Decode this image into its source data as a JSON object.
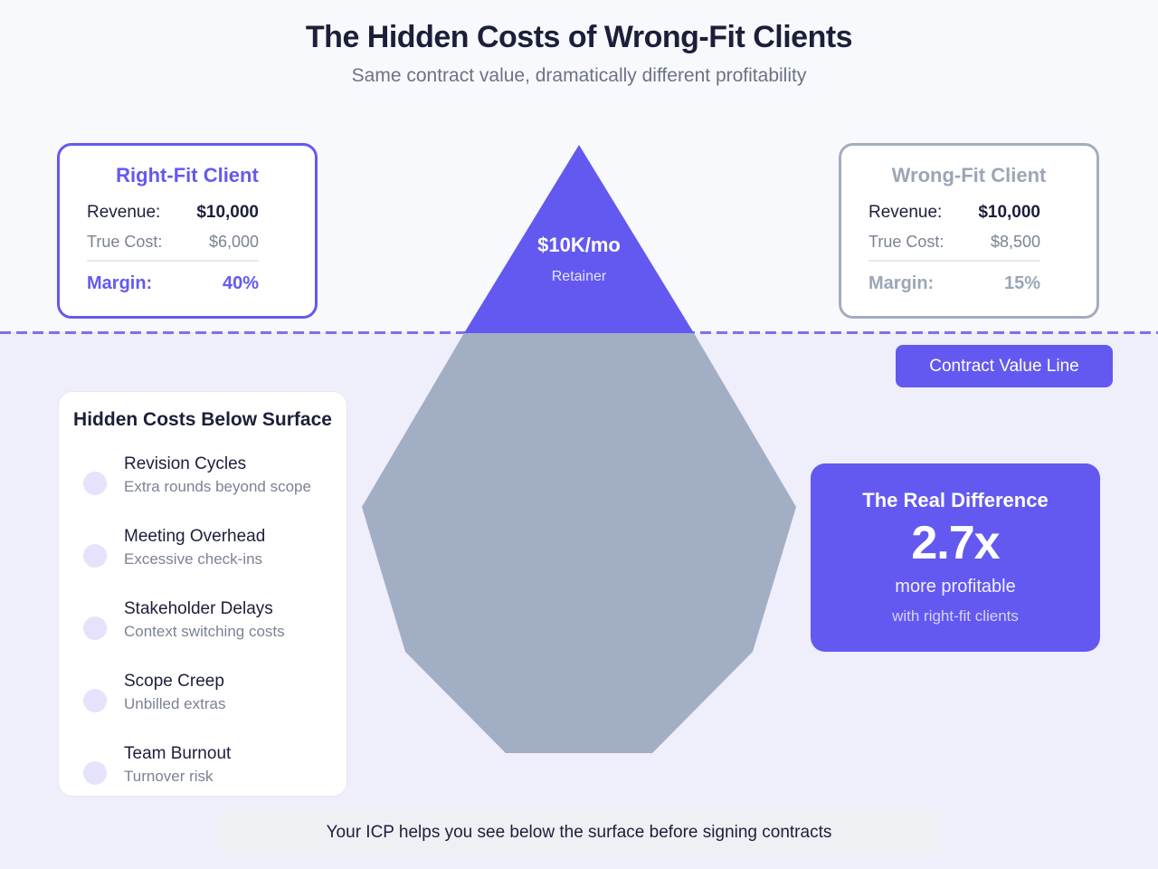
{
  "header": {
    "title": "The Hidden Costs of Wrong-Fit Clients",
    "subtitle": "Same contract value, dramatically different profitability"
  },
  "iceberg": {
    "tip_value": "$10K/mo",
    "tip_label": "Retainer"
  },
  "right_fit": {
    "title": "Right-Fit Client",
    "revenue_label": "Revenue:",
    "revenue_value": "$10,000",
    "cost_label": "True Cost:",
    "cost_value": "$6,000",
    "margin_label": "Margin:",
    "margin_value": "40%"
  },
  "wrong_fit": {
    "title": "Wrong-Fit Client",
    "revenue_label": "Revenue:",
    "revenue_value": "$10,000",
    "cost_label": "True Cost:",
    "cost_value": "$8,500",
    "margin_label": "Margin:",
    "margin_value": "15%"
  },
  "contract_line": {
    "label": "Contract Value Line"
  },
  "hidden_costs": {
    "title": "Hidden Costs Below Surface",
    "items": [
      {
        "name": "Revision Cycles",
        "desc": "Extra rounds beyond scope"
      },
      {
        "name": "Meeting Overhead",
        "desc": "Excessive check-ins"
      },
      {
        "name": "Stakeholder Delays",
        "desc": "Context switching costs"
      },
      {
        "name": "Scope Creep",
        "desc": "Unbilled extras"
      },
      {
        "name": "Team Burnout",
        "desc": "Turnover risk"
      }
    ]
  },
  "difference": {
    "title": "The Real Difference",
    "value": "2.7x",
    "subtitle": "more profitable",
    "note": "with right-fit clients"
  },
  "footer": {
    "text": "Your ICP helps you see below the surface before signing contracts"
  },
  "colors": {
    "accent": "#6359f0",
    "iceberg_below": "#a2aec4",
    "muted": "#9ba6b6"
  }
}
